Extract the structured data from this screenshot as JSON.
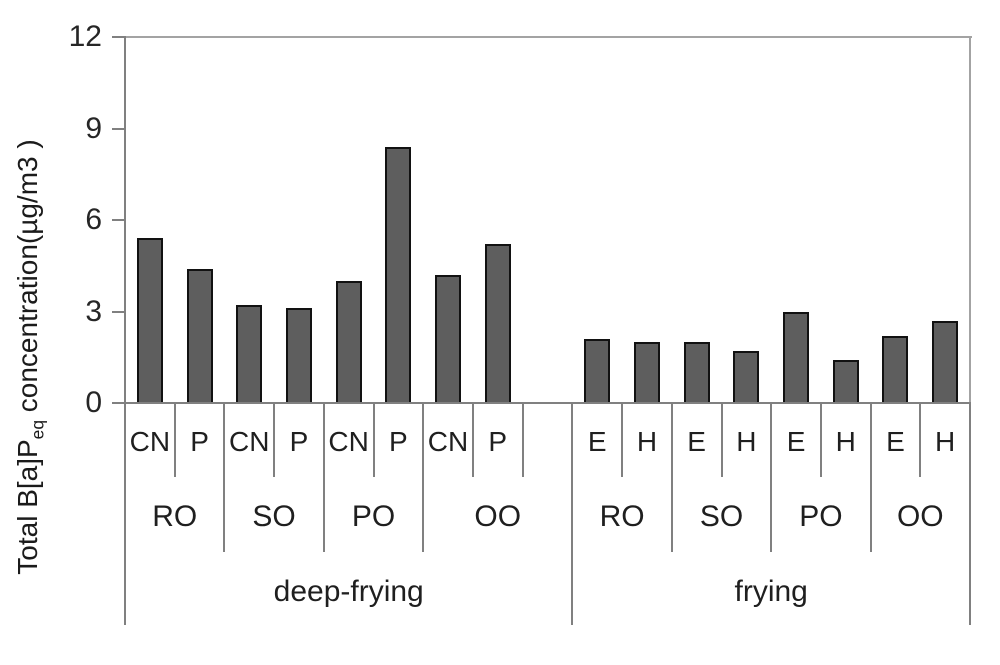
{
  "chart_data": {
    "type": "bar",
    "title": "",
    "ylabel_parts": {
      "prefix": "Total B[a]P",
      "sub": "eq",
      "suffix": " concentration(µg/m3 )"
    },
    "y_axis": {
      "min": 0,
      "max": 12,
      "ticks": [
        0,
        3,
        6,
        9,
        12
      ]
    },
    "grid": "off",
    "legend": "none",
    "bar_color": "#5e5e5e",
    "bar_border_color": "#121212",
    "axis_color": "#808080",
    "plot_border_color": "#a3a3a3",
    "groups": [
      {
        "label": "deep-frying",
        "oils": [
          {
            "label": "RO",
            "bars": [
              {
                "label": "CN",
                "value": 5.4
              },
              {
                "label": "P",
                "value": 4.4
              }
            ]
          },
          {
            "label": "SO",
            "bars": [
              {
                "label": "CN",
                "value": 3.2
              },
              {
                "label": "P",
                "value": 3.1
              }
            ]
          },
          {
            "label": "PO",
            "bars": [
              {
                "label": "CN",
                "value": 4.0
              },
              {
                "label": "P",
                "value": 8.4
              }
            ]
          },
          {
            "label": "OO",
            "bars": [
              {
                "label": "CN",
                "value": 4.2
              },
              {
                "label": "P",
                "value": 5.2
              }
            ]
          }
        ]
      },
      {
        "label": "frying",
        "oils": [
          {
            "label": "RO",
            "bars": [
              {
                "label": "E",
                "value": 2.1
              },
              {
                "label": "H",
                "value": 2.0
              }
            ]
          },
          {
            "label": "SO",
            "bars": [
              {
                "label": "E",
                "value": 2.0
              },
              {
                "label": "H",
                "value": 1.7
              }
            ]
          },
          {
            "label": "PO",
            "bars": [
              {
                "label": "E",
                "value": 3.0
              },
              {
                "label": "H",
                "value": 1.4
              }
            ]
          },
          {
            "label": "OO",
            "bars": [
              {
                "label": "E",
                "value": 2.2
              },
              {
                "label": "H",
                "value": 2.7
              }
            ]
          }
        ]
      }
    ]
  }
}
